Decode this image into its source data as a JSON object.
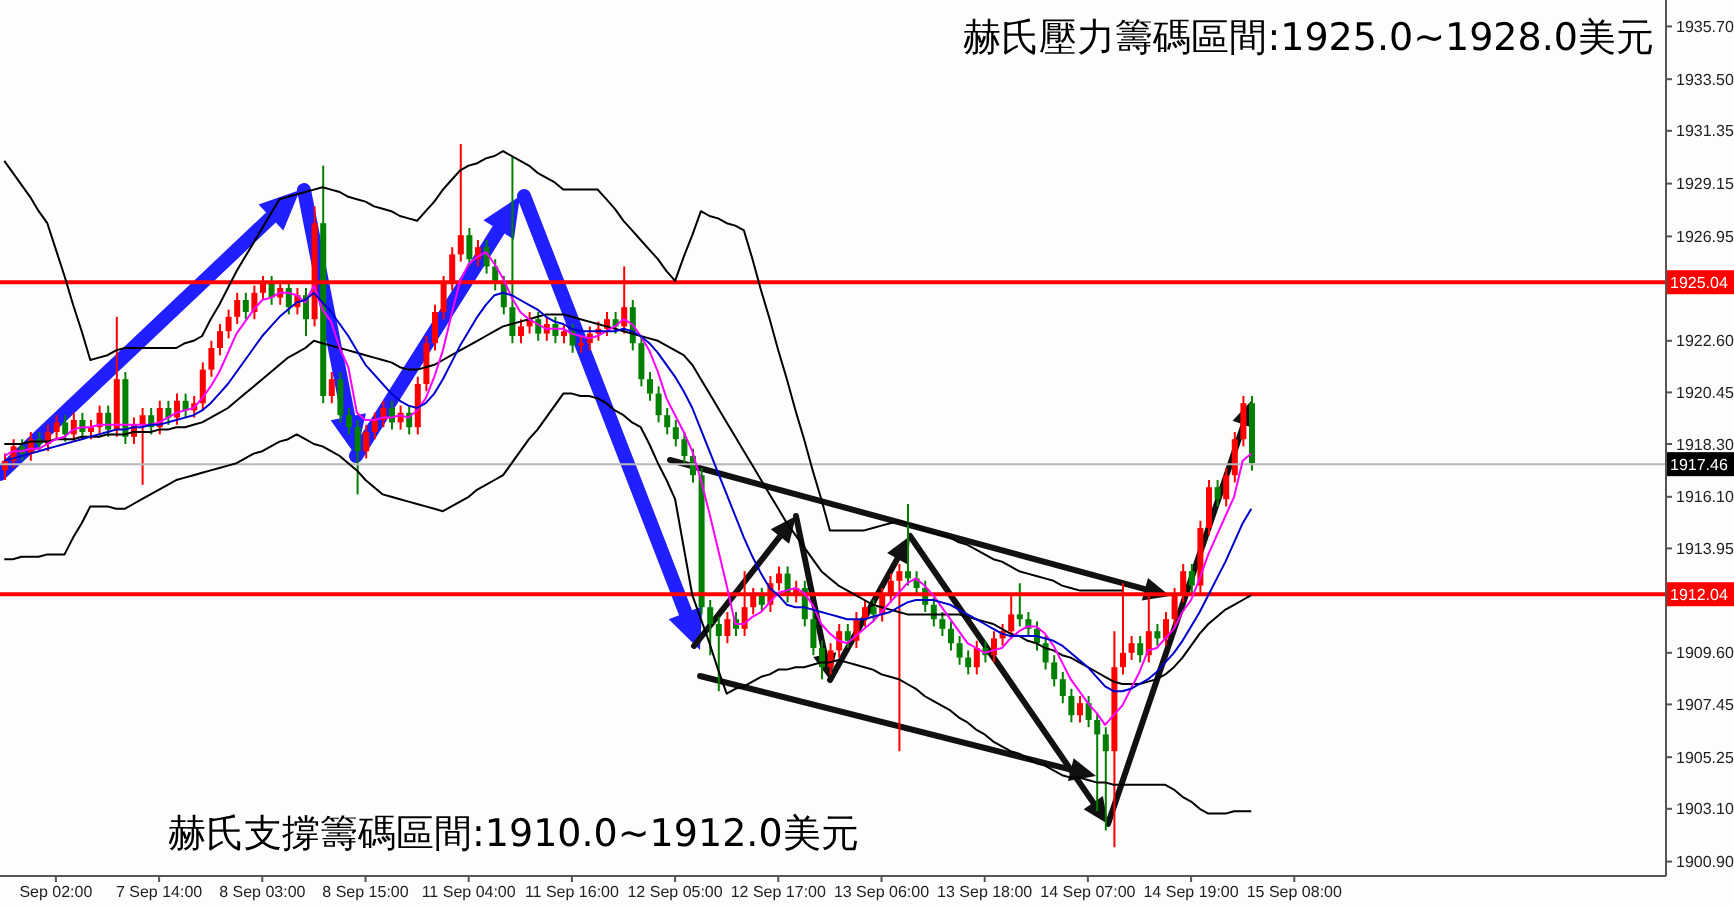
{
  "chart_data": {
    "type": "candlestick",
    "annotations": [
      "赫氏壓力籌碼區間:1925.0~1928.0美元",
      "赫氏支撐籌碼區間:1910.0~1912.0美元"
    ],
    "categories": [
      null,
      null,
      null,
      null,
      null,
      null,
      "Sep 02:00",
      null,
      null,
      null,
      null,
      null,
      null,
      null,
      null,
      null,
      null,
      null,
      "7 Sep 14:00",
      null,
      null,
      null,
      null,
      null,
      null,
      null,
      null,
      null,
      null,
      null,
      "8 Sep 03:00",
      null,
      null,
      null,
      null,
      null,
      null,
      null,
      null,
      null,
      null,
      null,
      "8 Sep 15:00",
      null,
      null,
      null,
      null,
      null,
      null,
      null,
      null,
      null,
      null,
      null,
      "11 Sep 04:00",
      null,
      null,
      null,
      null,
      null,
      null,
      null,
      null,
      null,
      null,
      null,
      "11 Sep 16:00",
      null,
      null,
      null,
      null,
      null,
      null,
      null,
      null,
      null,
      null,
      null,
      "12 Sep 05:00",
      null,
      null,
      null,
      null,
      null,
      null,
      null,
      null,
      null,
      null,
      null,
      "12 Sep 17:00",
      null,
      null,
      null,
      null,
      null,
      null,
      null,
      null,
      null,
      null,
      null,
      "13 Sep 06:00",
      null,
      null,
      null,
      null,
      null,
      null,
      null,
      null,
      null,
      null,
      null,
      "13 Sep 18:00",
      null,
      null,
      null,
      null,
      null,
      null,
      null,
      null,
      null,
      null,
      null,
      "14 Sep 07:00",
      null,
      null,
      null,
      null,
      null,
      null,
      null,
      null,
      null,
      null,
      null,
      "14 Sep 19:00",
      null,
      null,
      null,
      null,
      null,
      null,
      null,
      null,
      null,
      null,
      null,
      "15 Sep 08:00"
    ],
    "ohlc": [
      [
        1917.2,
        1917.9,
        1916.8,
        1917.6
      ],
      [
        1917.6,
        1918.5,
        1917.3,
        1918.2
      ],
      [
        1918.2,
        1918.5,
        1917.6,
        1917.9
      ],
      [
        1917.9,
        1918.8,
        1917.6,
        1918.5
      ],
      [
        1918.5,
        1918.8,
        1918.0,
        1918.3
      ],
      [
        1918.3,
        1919.1,
        1918.0,
        1918.8
      ],
      [
        1918.8,
        1919.5,
        1918.5,
        1919.2
      ],
      [
        1919.2,
        1919.5,
        1918.4,
        1918.7
      ],
      [
        1918.7,
        1919.6,
        1918.4,
        1919.3
      ],
      [
        1919.3,
        1919.6,
        1918.5,
        1918.8
      ],
      [
        1918.8,
        1919.3,
        1918.5,
        1919.0
      ],
      [
        1919.0,
        1919.9,
        1918.7,
        1919.6
      ],
      [
        1919.6,
        1919.9,
        1918.6,
        1918.9
      ],
      [
        1918.9,
        1923.6,
        1918.6,
        1921.0
      ],
      [
        1921.0,
        1921.3,
        1918.3,
        1918.6
      ],
      [
        1918.6,
        1919.4,
        1918.3,
        1919.1
      ],
      [
        1919.1,
        1919.8,
        1916.6,
        1919.5
      ],
      [
        1919.5,
        1919.8,
        1918.7,
        1919.0
      ],
      [
        1919.0,
        1920.1,
        1918.7,
        1919.8
      ],
      [
        1919.8,
        1920.1,
        1919.1,
        1919.4
      ],
      [
        1919.4,
        1920.4,
        1919.1,
        1920.1
      ],
      [
        1920.1,
        1920.4,
        1919.4,
        1919.7
      ],
      [
        1919.7,
        1920.3,
        1919.4,
        1920.0
      ],
      [
        1920.0,
        1921.7,
        1919.7,
        1921.4
      ],
      [
        1921.4,
        1922.6,
        1921.1,
        1922.3
      ],
      [
        1922.3,
        1923.3,
        1922.0,
        1923.0
      ],
      [
        1923.0,
        1923.9,
        1922.7,
        1923.6
      ],
      [
        1923.6,
        1924.6,
        1923.3,
        1924.3
      ],
      [
        1924.3,
        1924.6,
        1923.5,
        1923.8
      ],
      [
        1923.8,
        1924.9,
        1923.5,
        1924.6
      ],
      [
        1924.6,
        1925.3,
        1924.3,
        1925.0
      ],
      [
        1925.0,
        1925.3,
        1924.1,
        1924.4
      ],
      [
        1924.4,
        1925.1,
        1924.1,
        1924.8
      ],
      [
        1924.8,
        1925.1,
        1923.7,
        1924.0
      ],
      [
        1924.0,
        1924.8,
        1923.7,
        1924.5
      ],
      [
        1924.5,
        1924.8,
        1922.8,
        1923.5
      ],
      [
        1923.5,
        1928.2,
        1923.2,
        1927.5
      ],
      [
        1927.5,
        1929.9,
        1920.0,
        1920.3
      ],
      [
        1920.3,
        1921.3,
        1920.0,
        1921.0
      ],
      [
        1921.0,
        1921.3,
        1919.2,
        1919.5
      ],
      [
        1919.5,
        1919.8,
        1918.7,
        1919.0
      ],
      [
        1919.0,
        1919.3,
        1916.2,
        1918.0
      ],
      [
        1918.0,
        1919.1,
        1917.7,
        1918.8
      ],
      [
        1918.8,
        1919.6,
        1918.5,
        1919.3
      ],
      [
        1919.3,
        1920.1,
        1919.0,
        1919.8
      ],
      [
        1919.8,
        1920.1,
        1918.9,
        1919.2
      ],
      [
        1919.2,
        1919.9,
        1918.9,
        1919.6
      ],
      [
        1919.6,
        1919.9,
        1918.7,
        1919.0
      ],
      [
        1919.0,
        1921.1,
        1918.7,
        1920.8
      ],
      [
        1920.8,
        1922.8,
        1920.5,
        1922.5
      ],
      [
        1922.5,
        1924.1,
        1922.2,
        1923.8
      ],
      [
        1923.8,
        1925.3,
        1923.5,
        1925.0
      ],
      [
        1925.0,
        1926.5,
        1924.7,
        1926.2
      ],
      [
        1926.2,
        1930.8,
        1925.9,
        1927.0
      ],
      [
        1927.0,
        1927.3,
        1925.7,
        1926.0
      ],
      [
        1926.0,
        1926.8,
        1925.7,
        1926.5
      ],
      [
        1926.5,
        1926.8,
        1925.4,
        1925.7
      ],
      [
        1925.7,
        1926.0,
        1924.7,
        1925.0
      ],
      [
        1925.0,
        1925.3,
        1923.7,
        1924.0
      ],
      [
        1924.0,
        1930.3,
        1922.5,
        1922.8
      ],
      [
        1922.8,
        1923.5,
        1922.5,
        1923.2
      ],
      [
        1923.2,
        1923.8,
        1922.9,
        1923.5
      ],
      [
        1923.5,
        1923.8,
        1922.6,
        1922.9
      ],
      [
        1922.9,
        1923.6,
        1922.6,
        1923.3
      ],
      [
        1923.3,
        1923.6,
        1922.5,
        1922.8
      ],
      [
        1922.8,
        1923.3,
        1922.5,
        1923.0
      ],
      [
        1923.0,
        1923.3,
        1922.1,
        1922.4
      ],
      [
        1922.4,
        1922.8,
        1922.1,
        1922.5
      ],
      [
        1922.5,
        1923.2,
        1922.2,
        1922.9
      ],
      [
        1922.9,
        1923.4,
        1922.6,
        1923.1
      ],
      [
        1923.1,
        1923.8,
        1922.8,
        1923.5
      ],
      [
        1923.5,
        1923.8,
        1922.9,
        1923.2
      ],
      [
        1923.2,
        1925.7,
        1922.9,
        1924.0
      ],
      [
        1924.0,
        1924.3,
        1922.2,
        1922.5
      ],
      [
        1922.5,
        1922.8,
        1920.7,
        1921.0
      ],
      [
        1921.0,
        1921.3,
        1920.1,
        1920.4
      ],
      [
        1920.4,
        1920.7,
        1919.2,
        1919.5
      ],
      [
        1919.5,
        1919.8,
        1918.7,
        1919.0
      ],
      [
        1919.0,
        1919.3,
        1918.2,
        1918.5
      ],
      [
        1918.5,
        1918.8,
        1917.5,
        1917.8
      ],
      [
        1917.8,
        1918.1,
        1916.7,
        1917.0
      ],
      [
        1917.0,
        1917.3,
        1911.2,
        1911.5
      ],
      [
        1911.5,
        1911.8,
        1909.5,
        1910.8
      ],
      [
        1910.8,
        1911.1,
        1908.0,
        1910.3
      ],
      [
        1910.3,
        1911.3,
        1910.0,
        1911.0
      ],
      [
        1911.0,
        1911.3,
        1910.3,
        1910.6
      ],
      [
        1910.6,
        1913.0,
        1910.3,
        1911.5
      ],
      [
        1911.5,
        1912.3,
        1911.2,
        1912.0
      ],
      [
        1912.0,
        1912.3,
        1911.3,
        1911.6
      ],
      [
        1911.6,
        1912.8,
        1911.3,
        1912.5
      ],
      [
        1912.5,
        1913.2,
        1912.2,
        1912.9
      ],
      [
        1912.9,
        1913.2,
        1911.7,
        1912.0
      ],
      [
        1912.0,
        1912.6,
        1911.7,
        1912.3
      ],
      [
        1912.3,
        1912.6,
        1910.7,
        1911.0
      ],
      [
        1911.0,
        1911.3,
        1909.5,
        1909.8
      ],
      [
        1909.8,
        1910.1,
        1908.5,
        1909.0
      ],
      [
        1909.0,
        1910.0,
        1908.7,
        1909.7
      ],
      [
        1909.7,
        1910.8,
        1909.4,
        1910.5
      ],
      [
        1910.5,
        1910.8,
        1909.8,
        1910.1
      ],
      [
        1910.1,
        1911.3,
        1909.8,
        1911.0
      ],
      [
        1911.0,
        1911.8,
        1910.7,
        1911.5
      ],
      [
        1911.5,
        1911.8,
        1910.9,
        1911.2
      ],
      [
        1911.2,
        1912.3,
        1910.9,
        1912.0
      ],
      [
        1912.0,
        1912.9,
        1911.7,
        1912.6
      ],
      [
        1912.6,
        1913.3,
        1905.5,
        1913.0
      ],
      [
        1913.0,
        1915.8,
        1912.4,
        1912.7
      ],
      [
        1912.7,
        1913.0,
        1912.0,
        1912.3
      ],
      [
        1912.3,
        1912.6,
        1911.3,
        1911.6
      ],
      [
        1911.6,
        1911.9,
        1910.7,
        1911.0
      ],
      [
        1911.0,
        1911.3,
        1910.3,
        1910.6
      ],
      [
        1910.6,
        1910.9,
        1909.7,
        1910.0
      ],
      [
        1910.0,
        1910.3,
        1909.1,
        1909.4
      ],
      [
        1909.4,
        1909.7,
        1908.7,
        1909.0
      ],
      [
        1909.0,
        1910.1,
        1908.7,
        1909.8
      ],
      [
        1909.8,
        1910.1,
        1909.2,
        1909.5
      ],
      [
        1909.5,
        1910.5,
        1909.2,
        1910.2
      ],
      [
        1910.2,
        1910.8,
        1909.9,
        1910.5
      ],
      [
        1910.5,
        1912.0,
        1910.2,
        1911.2
      ],
      [
        1911.2,
        1912.5,
        1910.7,
        1911.0
      ],
      [
        1911.0,
        1911.3,
        1910.3,
        1910.6
      ],
      [
        1910.6,
        1910.9,
        1909.7,
        1910.0
      ],
      [
        1910.0,
        1910.3,
        1908.9,
        1909.2
      ],
      [
        1909.2,
        1909.5,
        1908.2,
        1908.5
      ],
      [
        1908.5,
        1908.8,
        1907.5,
        1907.8
      ],
      [
        1907.8,
        1908.1,
        1906.7,
        1907.0
      ],
      [
        1907.0,
        1907.8,
        1906.7,
        1907.5
      ],
      [
        1907.5,
        1907.8,
        1906.5,
        1906.8
      ],
      [
        1906.8,
        1907.1,
        1903.0,
        1906.2
      ],
      [
        1906.2,
        1906.5,
        1902.2,
        1905.5
      ],
      [
        1905.5,
        1910.5,
        1901.5,
        1909.0
      ],
      [
        1909.0,
        1912.5,
        1908.7,
        1909.6
      ],
      [
        1909.6,
        1910.3,
        1909.3,
        1910.0
      ],
      [
        1910.0,
        1910.3,
        1909.2,
        1909.5
      ],
      [
        1909.5,
        1912.0,
        1909.2,
        1910.5
      ],
      [
        1910.5,
        1910.8,
        1909.9,
        1910.2
      ],
      [
        1910.2,
        1911.3,
        1909.9,
        1911.0
      ],
      [
        1911.0,
        1912.3,
        1910.7,
        1912.0
      ],
      [
        1912.0,
        1913.3,
        1911.7,
        1913.0
      ],
      [
        1913.0,
        1913.3,
        1912.1,
        1912.4
      ],
      [
        1912.4,
        1915.1,
        1912.1,
        1914.8
      ],
      [
        1914.8,
        1916.8,
        1914.5,
        1916.5
      ],
      [
        1916.5,
        1916.8,
        1915.7,
        1916.0
      ],
      [
        1916.0,
        1917.3,
        1915.7,
        1917.0
      ],
      [
        1917.0,
        1918.8,
        1916.7,
        1918.5
      ],
      [
        1918.5,
        1920.3,
        1918.2,
        1920.0
      ],
      [
        1920.0,
        1920.3,
        1917.2,
        1917.5
      ],
      null,
      null,
      null,
      null,
      null
    ],
    "colors": [
      "#ff0000",
      "#ff0000",
      "#008000",
      "#ff0000",
      "#008000",
      "#ff0000",
      "#ff0000",
      "#008000",
      "#ff0000",
      "#008000",
      "#ff0000",
      "#ff0000",
      "#008000",
      "#ff0000",
      "#008000",
      "#ff0000",
      "#ff0000",
      "#008000",
      "#ff0000",
      "#008000",
      "#ff0000",
      "#008000",
      "#ff0000",
      "#ff0000",
      "#ff0000",
      "#ff0000",
      "#ff0000",
      "#ff0000",
      "#008000",
      "#ff0000",
      "#ff0000",
      "#008000",
      "#ff0000",
      "#008000",
      "#ff0000",
      "#008000",
      "#ff0000",
      "#008000",
      "#ff0000",
      "#008000",
      "#008000",
      "#008000",
      "#ff0000",
      "#ff0000",
      "#ff0000",
      "#008000",
      "#ff0000",
      "#008000",
      "#ff0000",
      "#ff0000",
      "#ff0000",
      "#ff0000",
      "#ff0000",
      "#ff0000",
      "#008000",
      "#ff0000",
      "#008000",
      "#008000",
      "#008000",
      "#008000",
      "#ff0000",
      "#ff0000",
      "#008000",
      "#ff0000",
      "#008000",
      "#ff0000",
      "#008000",
      "#ff0000",
      "#ff0000",
      "#ff0000",
      "#ff0000",
      "#008000",
      "#ff0000",
      "#008000",
      "#008000",
      "#008000",
      "#008000",
      "#008000",
      "#008000",
      "#008000",
      "#008000",
      "#008000",
      "#008000",
      "#008000",
      "#ff0000",
      "#008000",
      "#ff0000",
      "#ff0000",
      "#008000",
      "#ff0000",
      "#ff0000",
      "#008000",
      "#ff0000",
      "#008000",
      "#008000",
      "#008000",
      "#ff0000",
      "#ff0000",
      "#008000",
      "#ff0000",
      "#ff0000",
      "#008000",
      "#ff0000",
      "#ff0000",
      "#ff0000",
      "#008000",
      "#008000",
      "#008000",
      "#008000",
      "#008000",
      "#008000",
      "#008000",
      "#008000",
      "#ff0000",
      "#008000",
      "#ff0000",
      "#ff0000",
      "#ff0000",
      "#008000",
      "#008000",
      "#008000",
      "#008000",
      "#008000",
      "#008000",
      "#008000",
      "#ff0000",
      "#008000",
      "#008000",
      "#008000",
      "#ff0000",
      "#ff0000",
      "#ff0000",
      "#008000",
      "#ff0000",
      "#008000",
      "#ff0000",
      "#ff0000",
      "#ff0000",
      "#008000",
      "#ff0000",
      "#ff0000",
      "#008000",
      "#ff0000",
      "#ff0000",
      "#ff0000",
      "#008000",
      null,
      null,
      null,
      null,
      null
    ],
    "series": [
      {
        "type": "line",
        "color": "#000000",
        "values": [
          1930.1,
          1929.6,
          1929.1,
          1928.6,
          1928.0,
          1927.5,
          1926.4,
          1925.3,
          1924.1,
          1923.0,
          1921.8,
          1921.9,
          1922.0,
          1922.2,
          1922.3,
          1922.3,
          1922.3,
          1922.3,
          1922.3,
          1922.3,
          1922.3,
          1922.5,
          1922.6,
          1922.8,
          1923.5,
          1924.1,
          1924.8,
          1925.5,
          1926.1,
          1926.7,
          1927.3,
          1927.9,
          1928.5,
          1928.6,
          1928.7,
          1928.8,
          1928.9,
          1929.0,
          1928.9,
          1928.8,
          1928.6,
          1928.5,
          1928.4,
          1928.2,
          1928.1,
          1928.0,
          1927.8,
          1927.7,
          1927.6,
          1928.0,
          1928.4,
          1928.9,
          1929.3,
          1929.7,
          1929.9,
          1930.0,
          1930.2,
          1930.3,
          1930.5,
          1930.3,
          1930.1,
          1929.9,
          1929.6,
          1929.4,
          1929.2,
          1928.9,
          1928.9,
          1928.9,
          1928.9,
          1928.9,
          1928.5,
          1928.1,
          1927.6,
          1927.2,
          1926.8,
          1926.4,
          1926.0,
          1925.5,
          1925.1,
          1926.1,
          1927.0,
          1928.0,
          1927.8,
          1927.7,
          1927.5,
          1927.4,
          1927.2,
          1926.0,
          1924.7,
          1923.5,
          1922.2,
          1921.0,
          1919.7,
          1918.5,
          1917.2,
          1916.0,
          1914.7,
          1914.7,
          1914.7,
          1914.7,
          1914.7,
          1914.8,
          1914.9,
          1915.0,
          1915.1,
          1915.0,
          1914.9,
          1914.7,
          1914.6,
          1914.5,
          1914.4,
          1914.2,
          1914.1,
          1913.9,
          1913.7,
          1913.5,
          1913.4,
          1913.2,
          1913.0,
          1912.9,
          1912.8,
          1912.7,
          1912.6,
          1912.4,
          1912.3,
          1912.2,
          1912.2,
          1912.2,
          1912.2,
          1912.2,
          1912.2,
          null,
          null,
          null,
          null,
          null,
          null,
          null,
          null,
          null,
          null,
          null,
          null,
          null,
          null,
          null,
          null,
          null,
          null,
          null,
          null
        ]
      },
      {
        "type": "line",
        "color": "#000000",
        "values": [
          1918.3,
          1918.3,
          1918.3,
          1918.4,
          1918.4,
          1918.4,
          1918.5,
          1918.5,
          1918.5,
          1918.6,
          1918.6,
          1918.6,
          1918.7,
          1918.7,
          1918.7,
          1918.8,
          1918.8,
          1918.8,
          1918.9,
          1918.9,
          1919.0,
          1919.0,
          1919.1,
          1919.2,
          1919.4,
          1919.6,
          1919.8,
          1920.1,
          1920.4,
          1920.7,
          1921.0,
          1921.3,
          1921.6,
          1921.9,
          1922.1,
          1922.3,
          1922.6,
          1922.5,
          1922.4,
          1922.3,
          1922.2,
          1922.1,
          1922.0,
          1921.9,
          1921.8,
          1921.7,
          1921.5,
          1921.4,
          1921.4,
          1921.5,
          1921.6,
          1921.8,
          1922.0,
          1922.2,
          1922.4,
          1922.6,
          1922.8,
          1923.0,
          1923.2,
          1923.3,
          1923.4,
          1923.5,
          1923.6,
          1923.7,
          1923.7,
          1923.7,
          1923.6,
          1923.5,
          1923.4,
          1923.3,
          1923.2,
          1923.1,
          1923.0,
          1922.9,
          1922.8,
          1922.7,
          1922.6,
          1922.4,
          1922.2,
          1922.0,
          1921.6,
          1921.0,
          1920.4,
          1919.8,
          1919.2,
          1918.6,
          1918.0,
          1917.4,
          1916.8,
          1916.2,
          1915.6,
          1915.0,
          1914.5,
          1914.0,
          1913.5,
          1913.0,
          1912.7,
          1912.4,
          1912.2,
          1912.0,
          1911.8,
          1911.6,
          1911.5,
          1911.4,
          1911.3,
          1911.2,
          1911.2,
          1911.2,
          1911.2,
          1911.2,
          1911.2,
          1911.2,
          1911.1,
          1911.0,
          1910.9,
          1910.8,
          1910.6,
          1910.4,
          1910.3,
          1910.1,
          1910.0,
          1909.8,
          1909.7,
          1909.5,
          1909.4,
          1909.2,
          1909.0,
          1908.8,
          1908.6,
          1908.4,
          1908.3,
          1908.3,
          1908.3,
          1908.4,
          1908.5,
          1908.7,
          1909.0,
          1909.4,
          1909.9,
          1910.4,
          1910.8,
          1911.1,
          1911.4,
          1911.6,
          1911.8,
          1912.0,
          null,
          null,
          null,
          null,
          null
        ]
      },
      {
        "type": "line",
        "color": "#000000",
        "values": [
          1913.5,
          1913.5,
          1913.6,
          1913.6,
          1913.6,
          1913.7,
          1913.7,
          1913.7,
          1914.4,
          1915.0,
          1915.7,
          1915.7,
          1915.7,
          1915.6,
          1915.6,
          1915.8,
          1916.0,
          1916.2,
          1916.4,
          1916.6,
          1916.8,
          1916.9,
          1917.0,
          1917.1,
          1917.2,
          1917.3,
          1917.4,
          1917.5,
          1917.7,
          1917.9,
          1918.0,
          1918.2,
          1918.4,
          1918.5,
          1918.7,
          1918.5,
          1918.3,
          1918.2,
          1918.0,
          1917.8,
          1917.5,
          1917.2,
          1916.8,
          1916.5,
          1916.2,
          1916.1,
          1916.0,
          1915.9,
          1915.8,
          1915.7,
          1915.6,
          1915.5,
          1915.7,
          1915.9,
          1916.1,
          1916.4,
          1916.6,
          1916.8,
          1917.0,
          1917.5,
          1918.0,
          1918.5,
          1918.9,
          1919.4,
          1919.9,
          1920.4,
          1920.4,
          1920.3,
          1920.3,
          1920.2,
          1920.0,
          1919.7,
          1919.5,
          1919.2,
          1919.0,
          1918.3,
          1917.5,
          1916.8,
          1916.0,
          1914.0,
          1912.0,
          1911.0,
          1910.0,
          1908.9,
          1907.9,
          1908.1,
          1908.2,
          1908.4,
          1908.6,
          1908.7,
          1908.9,
          1908.9,
          1909.0,
          1909.0,
          1909.1,
          1909.2,
          1909.2,
          1909.3,
          1909.2,
          1909.1,
          1909.0,
          1908.9,
          1908.7,
          1908.6,
          1908.5,
          1908.3,
          1908.1,
          1907.8,
          1907.6,
          1907.4,
          1907.2,
          1906.9,
          1906.7,
          1906.4,
          1906.2,
          1905.9,
          1905.7,
          1905.5,
          1905.4,
          1905.2,
          1905.0,
          1904.9,
          1904.7,
          1904.5,
          1904.4,
          1904.4,
          1904.3,
          1904.2,
          1904.2,
          1904.1,
          1904.1,
          1904.1,
          1904.1,
          1904.1,
          1904.1,
          1904.1,
          1903.9,
          1903.6,
          1903.4,
          1903.1,
          1902.9,
          1902.9,
          1902.9,
          1903.0,
          1903.0,
          1903.0,
          null,
          null,
          null,
          null,
          null
        ]
      },
      {
        "type": "line",
        "color": "#ff00ff",
        "values": [
          1917.8,
          1918.0,
          1918.0,
          1918.1,
          1918.1,
          1918.3,
          1918.5,
          1918.6,
          1918.9,
          1919.0,
          1919.0,
          1919.1,
          1919.1,
          1919.1,
          1919.1,
          1919.1,
          1919.1,
          1919.1,
          1919.2,
          1919.4,
          1919.6,
          1919.7,
          1919.8,
          1920.2,
          1920.7,
          1921.3,
          1922.1,
          1922.9,
          1923.4,
          1923.9,
          1924.3,
          1924.4,
          1924.6,
          1924.6,
          1924.5,
          1924.2,
          1924.9,
          1923.9,
          1923.4,
          1922.3,
          1921.5,
          1919.6,
          1919.3,
          1919.3,
          1919.4,
          1919.4,
          1919.5,
          1919.4,
          1919.7,
          1920.2,
          1921.1,
          1922.2,
          1923.7,
          1925.1,
          1925.8,
          1926.1,
          1926.3,
          1925.8,
          1925.2,
          1924.4,
          1923.8,
          1923.5,
          1923.3,
          1923.1,
          1923.1,
          1923.1,
          1922.9,
          1922.8,
          1922.7,
          1922.8,
          1923.0,
          1923.2,
          1923.5,
          1923.3,
          1922.8,
          1922.2,
          1921.3,
          1920.2,
          1919.5,
          1918.8,
          1918.0,
          1916.8,
          1915.4,
          1913.9,
          1912.4,
          1910.8,
          1910.8,
          1911.1,
          1911.3,
          1911.7,
          1912.1,
          1912.2,
          1912.3,
          1912.1,
          1911.6,
          1910.8,
          1910.4,
          1910.1,
          1910.0,
          1910.3,
          1910.6,
          1910.9,
          1911.3,
          1911.7,
          1912.1,
          1912.5,
          1912.7,
          1912.4,
          1912.0,
          1911.5,
          1911.0,
          1910.5,
          1910.0,
          1909.8,
          1909.6,
          1909.7,
          1909.8,
          1910.2,
          1910.5,
          1910.7,
          1910.7,
          1910.4,
          1909.9,
          1909.2,
          1908.5,
          1908.0,
          1907.5,
          1907.1,
          1906.6,
          1907.0,
          1907.4,
          1908.1,
          1908.8,
          1909.7,
          1909.8,
          1910.2,
          1910.6,
          1911.3,
          1911.8,
          1912.7,
          1913.7,
          1914.5,
          1915.3,
          1916.1,
          1917.6,
          1917.9,
          null,
          null,
          null,
          null,
          null
        ]
      },
      {
        "type": "line",
        "color": "#0000cc",
        "values": [
          1917.6,
          1917.7,
          1917.8,
          1917.9,
          1918.0,
          1918.1,
          1918.2,
          1918.3,
          1918.4,
          1918.5,
          1918.6,
          1918.7,
          1918.8,
          1918.9,
          1918.9,
          1919.0,
          1919.0,
          1919.1,
          1919.1,
          1919.2,
          1919.3,
          1919.4,
          1919.5,
          1919.7,
          1920.0,
          1920.4,
          1920.8,
          1921.3,
          1921.8,
          1922.3,
          1922.8,
          1923.2,
          1923.6,
          1923.9,
          1924.2,
          1924.3,
          1924.6,
          1924.2,
          1923.8,
          1923.3,
          1922.8,
          1922.2,
          1921.6,
          1921.2,
          1920.8,
          1920.4,
          1920.1,
          1919.9,
          1919.8,
          1920.0,
          1920.4,
          1921.0,
          1921.7,
          1922.4,
          1923.0,
          1923.6,
          1924.1,
          1924.5,
          1924.6,
          1924.5,
          1924.3,
          1924.1,
          1923.9,
          1923.6,
          1923.4,
          1923.3,
          1923.1,
          1923.0,
          1923.0,
          1923.0,
          1923.0,
          1923.0,
          1923.1,
          1923.0,
          1922.8,
          1922.5,
          1922.1,
          1921.6,
          1921.1,
          1920.5,
          1919.8,
          1918.9,
          1918.0,
          1917.1,
          1916.2,
          1915.3,
          1914.4,
          1913.6,
          1912.9,
          1912.3,
          1912.0,
          1911.6,
          1911.5,
          1911.5,
          1911.4,
          1911.3,
          1911.2,
          1911.1,
          1911.0,
          1911.0,
          1911.0,
          1911.1,
          1911.2,
          1911.3,
          1911.5,
          1911.7,
          1911.8,
          1911.8,
          1911.8,
          1911.7,
          1911.6,
          1911.4,
          1911.2,
          1911.0,
          1910.8,
          1910.6,
          1910.4,
          1910.3,
          1910.3,
          1910.3,
          1910.3,
          1910.2,
          1910.1,
          1909.9,
          1909.6,
          1909.3,
          1909.0,
          1908.6,
          1908.2,
          1908.0,
          1908.0,
          1908.1,
          1908.3,
          1908.5,
          1908.8,
          1909.2,
          1909.6,
          1910.1,
          1910.7,
          1911.3,
          1912.0,
          1912.7,
          1913.4,
          1914.2,
          1915.0,
          1915.6,
          null,
          null,
          null,
          null,
          null
        ]
      }
    ],
    "ylim": [
      1900.3,
      1936.8
    ],
    "yticks": [
      {
        "value": 1900.9,
        "label": "1900.90"
      },
      {
        "value": 1903.1,
        "label": "1903.10"
      },
      {
        "value": 1905.25,
        "label": "1905.25"
      },
      {
        "value": 1907.45,
        "label": "1907.45"
      },
      {
        "value": 1909.6,
        "label": "1909.60"
      },
      {
        "value": 1913.95,
        "label": "1913.95"
      },
      {
        "value": 1916.1,
        "label": "1916.10"
      },
      {
        "value": 1918.3,
        "label": "1918.30"
      },
      {
        "value": 1920.45,
        "label": "1920.45"
      },
      {
        "value": 1922.6,
        "label": "1922.60"
      },
      {
        "value": 1926.95,
        "label": "1926.95"
      },
      {
        "value": 1929.15,
        "label": "1929.15"
      },
      {
        "value": 1931.35,
        "label": "1931.35"
      },
      {
        "value": 1933.5,
        "label": "1933.50"
      },
      {
        "value": 1935.7,
        "label": "1935.70"
      }
    ],
    "ref_lines": [
      {
        "axis": "y",
        "value": 1925.04,
        "label": "1925.04",
        "color": "#ff0000"
      },
      {
        "axis": "y",
        "value": 1912.04,
        "label": "1912.04",
        "color": "#ff0000"
      },
      {
        "axis": "y",
        "value": 1917.46,
        "label": "1917.46",
        "color": "#b8b8b8"
      }
    ]
  }
}
